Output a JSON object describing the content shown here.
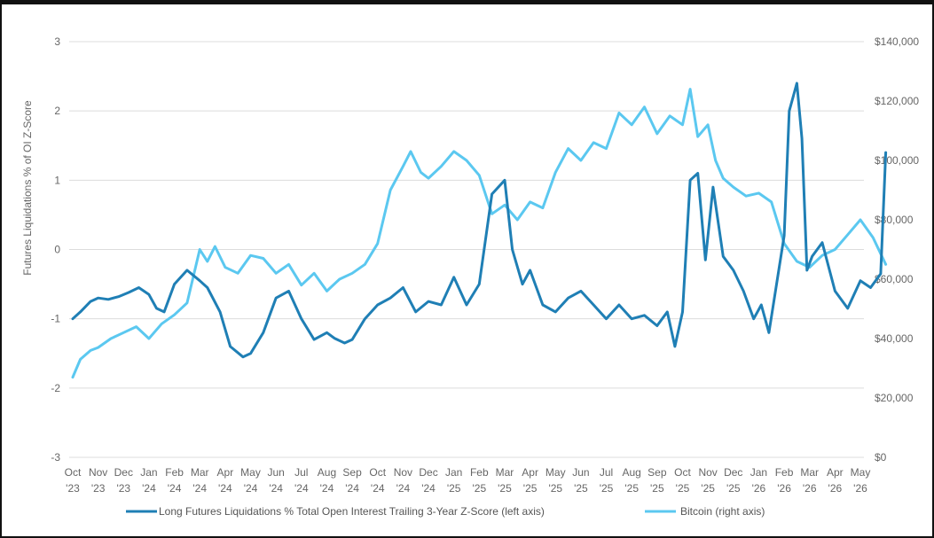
{
  "chart_data": {
    "type": "line",
    "title": "",
    "ylabel_left": "Futures Liquidations % of OI Z-Score",
    "ylabel_right": "",
    "ylim_left": [
      -3,
      3
    ],
    "ylim_right": [
      0,
      140000
    ],
    "y_ticks_left": [
      "3",
      "2",
      "1",
      "0",
      "-1",
      "-2",
      "-3"
    ],
    "y_ticks_right": [
      "$140,000",
      "$120,000",
      "$100,000",
      "$80,000",
      "$60,000",
      "$40,000",
      "$20,000",
      "$0"
    ],
    "x_ticks": [
      {
        "m": "Oct",
        "y": "'23"
      },
      {
        "m": "Nov",
        "y": "'23"
      },
      {
        "m": "Dec",
        "y": "'23"
      },
      {
        "m": "Jan",
        "y": "'24"
      },
      {
        "m": "Feb",
        "y": "'24"
      },
      {
        "m": "Mar",
        "y": "'24"
      },
      {
        "m": "Apr",
        "y": "'24"
      },
      {
        "m": "May",
        "y": "'24"
      },
      {
        "m": "Jun",
        "y": "'24"
      },
      {
        "m": "Jul",
        "y": "'24"
      },
      {
        "m": "Aug",
        "y": "'24"
      },
      {
        "m": "Sep",
        "y": "'24"
      },
      {
        "m": "Oct",
        "y": "'24"
      },
      {
        "m": "Nov",
        "y": "'24"
      },
      {
        "m": "Dec",
        "y": "'24"
      },
      {
        "m": "Jan",
        "y": "'25"
      },
      {
        "m": "Feb",
        "y": "'25"
      },
      {
        "m": "Mar",
        "y": "'25"
      },
      {
        "m": "Apr",
        "y": "'25"
      },
      {
        "m": "May",
        "y": "'25"
      },
      {
        "m": "Jun",
        "y": "'25"
      },
      {
        "m": "Jul",
        "y": "'25"
      },
      {
        "m": "Aug",
        "y": "'25"
      },
      {
        "m": "Sep",
        "y": "'25"
      },
      {
        "m": "Oct",
        "y": "'25"
      },
      {
        "m": "Nov",
        "y": "'25"
      },
      {
        "m": "Dec",
        "y": "'25"
      },
      {
        "m": "Jan",
        "y": "'26"
      },
      {
        "m": "Feb",
        "y": "'26"
      },
      {
        "m": "Mar",
        "y": "'26"
      },
      {
        "m": "Apr",
        "y": "'26"
      },
      {
        "m": "May",
        "y": "'26"
      }
    ],
    "grid": true,
    "legend_position": "bottom",
    "series": [
      {
        "name": "Long Futures Liquidations % Total Open Interest Trailing 3-Year Z-Score (left axis)",
        "axis": "left",
        "color": "#1f7fb5",
        "x": [
          0,
          0.3,
          0.7,
          1,
          1.4,
          1.8,
          2.2,
          2.6,
          3,
          3.3,
          3.6,
          4,
          4.5,
          5,
          5.3,
          5.8,
          6.2,
          6.7,
          7,
          7.5,
          8,
          8.5,
          9,
          9.5,
          10,
          10.3,
          10.7,
          11,
          11.5,
          12,
          12.5,
          13,
          13.5,
          14,
          14.5,
          15,
          15.5,
          16,
          16.5,
          17,
          17.3,
          17.7,
          18,
          18.5,
          19,
          19.5,
          20,
          20.5,
          21,
          21.5,
          22,
          22.5,
          23,
          23.4,
          23.7,
          24,
          24.3,
          24.6,
          24.9,
          25.2,
          25.6,
          26,
          26.4,
          26.8,
          27.1,
          27.4,
          27.7,
          28,
          28.2,
          28.5,
          28.7,
          28.9,
          29.1,
          29.5,
          30,
          30.5,
          31,
          31.4,
          31.8,
          32
        ],
        "values": [
          -1.0,
          -0.9,
          -0.75,
          -0.7,
          -0.72,
          -0.68,
          -0.62,
          -0.55,
          -0.65,
          -0.85,
          -0.9,
          -0.5,
          -0.3,
          -0.45,
          -0.55,
          -0.9,
          -1.4,
          -1.55,
          -1.5,
          -1.2,
          -0.7,
          -0.6,
          -1.0,
          -1.3,
          -1.2,
          -1.28,
          -1.35,
          -1.3,
          -1.0,
          -0.8,
          -0.7,
          -0.55,
          -0.9,
          -0.75,
          -0.8,
          -0.4,
          -0.8,
          -0.5,
          0.8,
          1.0,
          0.0,
          -0.5,
          -0.3,
          -0.8,
          -0.9,
          -0.7,
          -0.6,
          -0.8,
          -1.0,
          -0.8,
          -1.0,
          -0.95,
          -1.1,
          -0.9,
          -1.4,
          -0.9,
          1.0,
          1.1,
          -0.15,
          0.9,
          -0.1,
          -0.3,
          -0.6,
          -1.0,
          -0.8,
          -1.2,
          -0.5,
          0.2,
          2.0,
          2.4,
          1.6,
          -0.3,
          -0.1,
          0.1,
          -0.6,
          -0.85,
          -0.45,
          -0.55,
          -0.35,
          1.4
        ]
      },
      {
        "name": "Bitcoin (right axis)",
        "axis": "right",
        "color": "#5bc8f0",
        "x": [
          0,
          0.3,
          0.7,
          1,
          1.5,
          2,
          2.5,
          3,
          3.5,
          4,
          4.5,
          5,
          5.3,
          5.6,
          6,
          6.5,
          7,
          7.5,
          8,
          8.5,
          9,
          9.5,
          10,
          10.5,
          11,
          11.5,
          12,
          12.5,
          13,
          13.3,
          13.7,
          14,
          14.5,
          15,
          15.5,
          16,
          16.5,
          17,
          17.5,
          18,
          18.5,
          19,
          19.5,
          20,
          20.5,
          21,
          21.5,
          22,
          22.5,
          23,
          23.5,
          24,
          24.3,
          24.6,
          25,
          25.3,
          25.6,
          26,
          26.5,
          27,
          27.5,
          28,
          28.5,
          29,
          29.5,
          30,
          30.5,
          31,
          31.5,
          32
        ],
        "values": [
          27000,
          33000,
          36000,
          37000,
          40000,
          42000,
          44000,
          40000,
          45000,
          48000,
          52000,
          70000,
          66000,
          71000,
          64000,
          62000,
          68000,
          67000,
          62000,
          65000,
          58000,
          62000,
          56000,
          60000,
          62000,
          65000,
          72000,
          90000,
          98000,
          103000,
          96000,
          94000,
          98000,
          103000,
          100000,
          95000,
          82000,
          85000,
          80000,
          86000,
          84000,
          96000,
          104000,
          100000,
          106000,
          104000,
          116000,
          112000,
          118000,
          109000,
          115000,
          112000,
          124000,
          108000,
          112000,
          100000,
          94000,
          91000,
          88000,
          89000,
          86000,
          72000,
          66000,
          64000,
          68000,
          70000,
          75000,
          80000,
          74000,
          65000
        ]
      }
    ]
  }
}
